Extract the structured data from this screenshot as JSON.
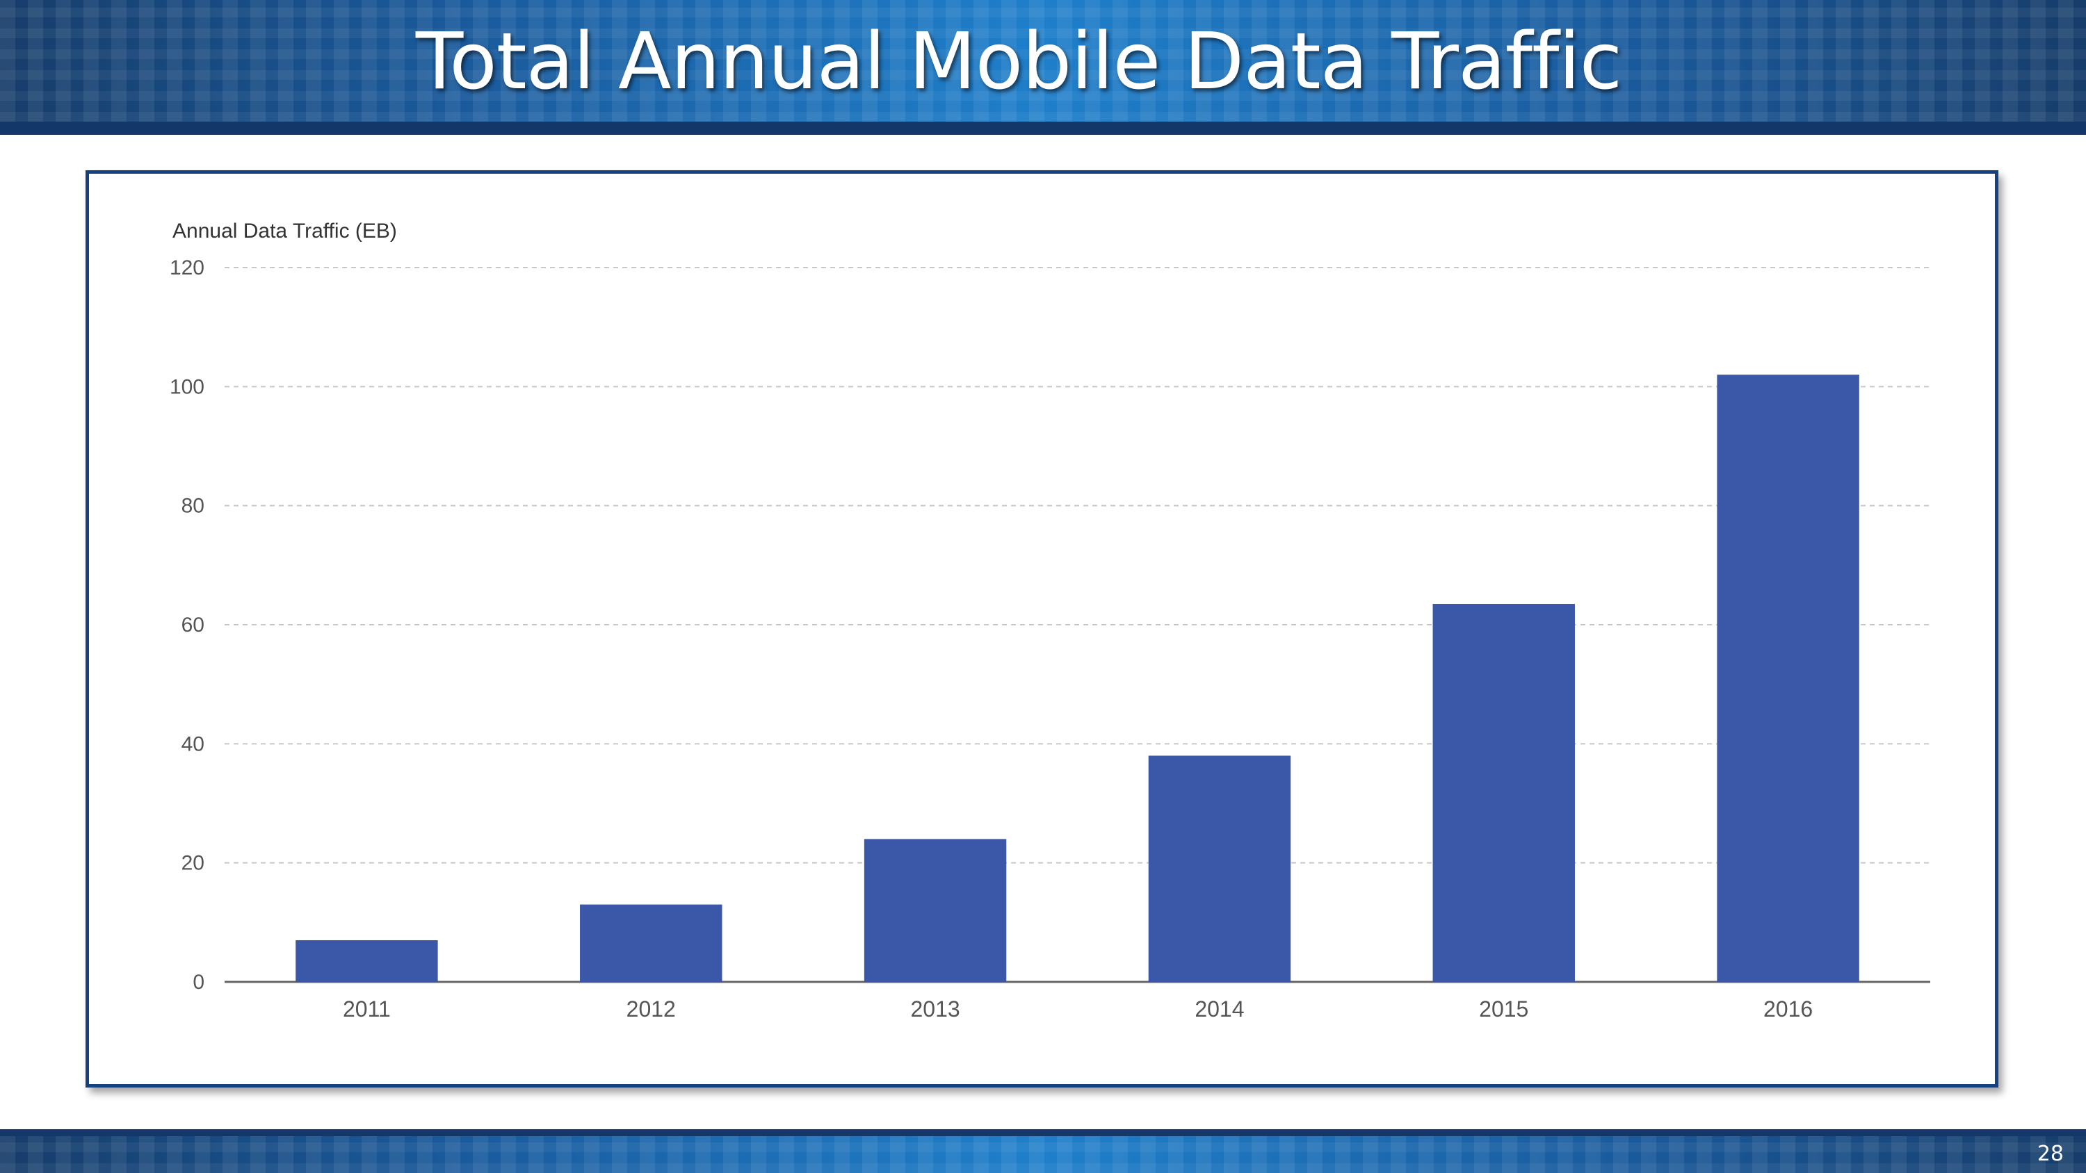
{
  "slide": {
    "title": "Total Annual Mobile Data Traffic",
    "page_number": "28"
  },
  "colors": {
    "bar": "#3a57a8",
    "banner": "#1f7fcb",
    "frame": "#17407f"
  },
  "chart_data": {
    "type": "bar",
    "title": "",
    "xlabel": "",
    "ylabel": "Annual Data Traffic (EB)",
    "categories": [
      "2011",
      "2012",
      "2013",
      "2014",
      "2015",
      "2016"
    ],
    "series": [
      {
        "values": [
          7,
          13,
          24,
          38,
          63.5,
          102
        ]
      }
    ],
    "ylim": [
      0,
      120
    ],
    "yticks": [
      0,
      20,
      40,
      60,
      80,
      100,
      120
    ],
    "grid": true,
    "legend": "none"
  }
}
